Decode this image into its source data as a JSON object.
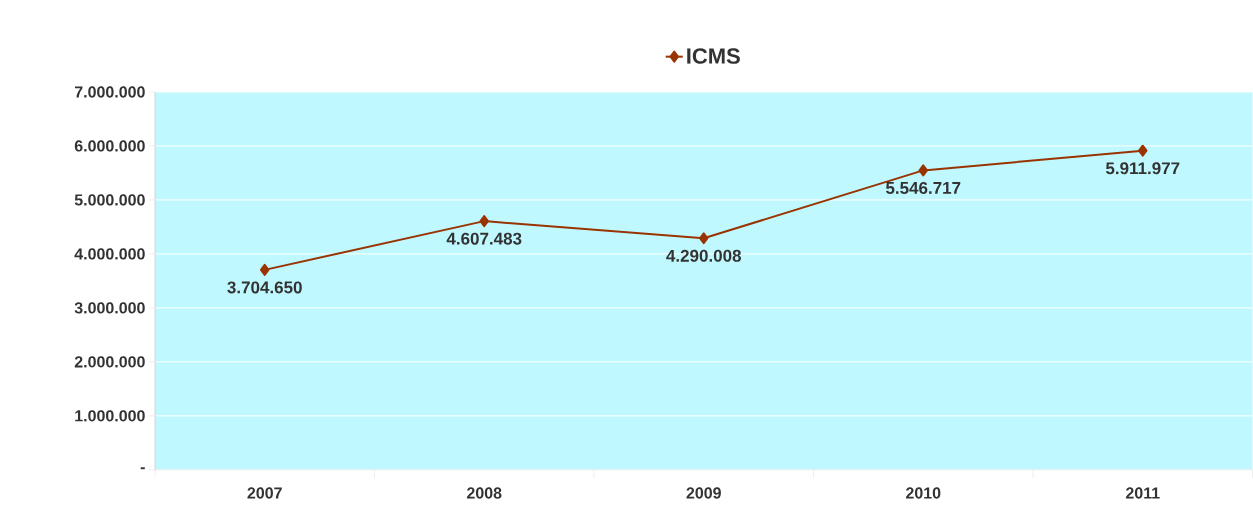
{
  "chart_data": {
    "type": "line",
    "categories": [
      "2007",
      "2008",
      "2009",
      "2010",
      "2011"
    ],
    "series": [
      {
        "name": "ICMS",
        "color": "#993300",
        "values": [
          3704650,
          4607483,
          4290008,
          5546717,
          5911977
        ],
        "value_labels": [
          "3.704.650",
          "4.607.483",
          "4.290.008",
          "5.546.717",
          "5.911.977"
        ]
      }
    ],
    "ylim": [
      0,
      7000000
    ],
    "yticks": [
      {
        "value": 0,
        "label": "-"
      },
      {
        "value": 1000000,
        "label": "1.000.000"
      },
      {
        "value": 2000000,
        "label": "2.000.000"
      },
      {
        "value": 3000000,
        "label": "3.000.000"
      },
      {
        "value": 4000000,
        "label": "4.000.000"
      },
      {
        "value": 5000000,
        "label": "5.000.000"
      },
      {
        "value": 6000000,
        "label": "6.000.000"
      },
      {
        "value": 7000000,
        "label": "7.000.000"
      }
    ],
    "grid": "y",
    "legend": "top",
    "marker": "diamond",
    "line_style": "solid"
  }
}
